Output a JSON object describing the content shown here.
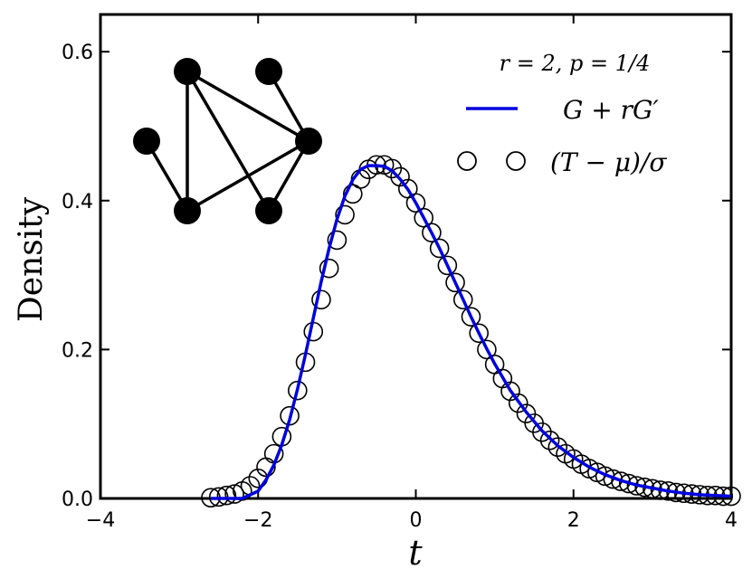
{
  "chart_data": {
    "type": "line",
    "xlabel": "t",
    "ylabel": "Density",
    "xlim": [
      -4,
      4
    ],
    "ylim": [
      0,
      0.65
    ],
    "x_ticks": [
      -4,
      -2,
      0,
      2,
      4
    ],
    "x_tick_labels": [
      "−4",
      "−2",
      "0",
      "2",
      "4"
    ],
    "y_ticks": [
      0.0,
      0.2,
      0.4,
      0.6
    ],
    "y_tick_labels": [
      "0.0",
      "0.2",
      "0.4",
      "0.6"
    ],
    "annotation": "r = 2,  p = 1/4",
    "legend_position": "top-right",
    "series": [
      {
        "name": "G + rG′",
        "style": "line",
        "color": "#0000dd",
        "x": [
          -2.6,
          -2.4,
          -2.2,
          -2.0,
          -1.9,
          -1.8,
          -1.7,
          -1.6,
          -1.5,
          -1.4,
          -1.3,
          -1.2,
          -1.1,
          -1.0,
          -0.9,
          -0.8,
          -0.7,
          -0.6,
          -0.5,
          -0.4,
          -0.3,
          -0.2,
          -0.1,
          0.0,
          0.1,
          0.2,
          0.3,
          0.4,
          0.5,
          0.6,
          0.7,
          0.8,
          0.9,
          1.0,
          1.2,
          1.4,
          1.6,
          1.8,
          2.0,
          2.2,
          2.4,
          2.6,
          2.8,
          3.0,
          3.2,
          3.4,
          3.6,
          3.8,
          4.0
        ],
        "y": [
          0.0,
          0.0,
          0.0,
          0.01,
          0.025,
          0.045,
          0.072,
          0.106,
          0.147,
          0.193,
          0.242,
          0.291,
          0.336,
          0.375,
          0.406,
          0.428,
          0.442,
          0.447,
          0.447,
          0.446,
          0.44,
          0.429,
          0.415,
          0.397,
          0.377,
          0.357,
          0.336,
          0.313,
          0.29,
          0.267,
          0.244,
          0.222,
          0.201,
          0.181,
          0.145,
          0.116,
          0.091,
          0.071,
          0.055,
          0.042,
          0.032,
          0.024,
          0.018,
          0.014,
          0.01,
          0.007,
          0.005,
          0.004,
          0.003
        ]
      },
      {
        "name": "(T − μ)/σ",
        "style": "markers",
        "marker": "open-circle",
        "color": "#000000",
        "x": [
          -2.6,
          -2.5,
          -2.4,
          -2.3,
          -2.2,
          -2.1,
          -2.0,
          -1.9,
          -1.8,
          -1.7,
          -1.6,
          -1.5,
          -1.4,
          -1.3,
          -1.2,
          -1.1,
          -1.0,
          -0.9,
          -0.8,
          -0.7,
          -0.6,
          -0.5,
          -0.4,
          -0.3,
          -0.2,
          -0.1,
          0.0,
          0.1,
          0.2,
          0.3,
          0.4,
          0.5,
          0.6,
          0.7,
          0.8,
          0.9,
          1.0,
          1.1,
          1.2,
          1.3,
          1.4,
          1.5,
          1.6,
          1.7,
          1.8,
          1.9,
          2.0,
          2.1,
          2.2,
          2.3,
          2.4,
          2.5,
          2.6,
          2.7,
          2.8,
          2.9,
          3.0,
          3.1,
          3.2,
          3.3,
          3.4,
          3.5,
          3.6,
          3.7,
          3.8,
          3.9,
          4.0
        ],
        "y": [
          0.001,
          0.002,
          0.004,
          0.006,
          0.01,
          0.017,
          0.027,
          0.042,
          0.06,
          0.083,
          0.111,
          0.145,
          0.183,
          0.224,
          0.267,
          0.309,
          0.347,
          0.381,
          0.409,
          0.429,
          0.442,
          0.448,
          0.448,
          0.443,
          0.432,
          0.416,
          0.397,
          0.377,
          0.357,
          0.336,
          0.313,
          0.29,
          0.267,
          0.244,
          0.222,
          0.2,
          0.18,
          0.161,
          0.144,
          0.128,
          0.114,
          0.101,
          0.089,
          0.078,
          0.069,
          0.06,
          0.053,
          0.046,
          0.04,
          0.035,
          0.03,
          0.026,
          0.023,
          0.02,
          0.017,
          0.015,
          0.013,
          0.011,
          0.01,
          0.008,
          0.007,
          0.006,
          0.005,
          0.004,
          0.004,
          0.003,
          0.003
        ]
      }
    ]
  },
  "inset_graph": {
    "description_nodes": 6,
    "node_color": "#000000"
  }
}
